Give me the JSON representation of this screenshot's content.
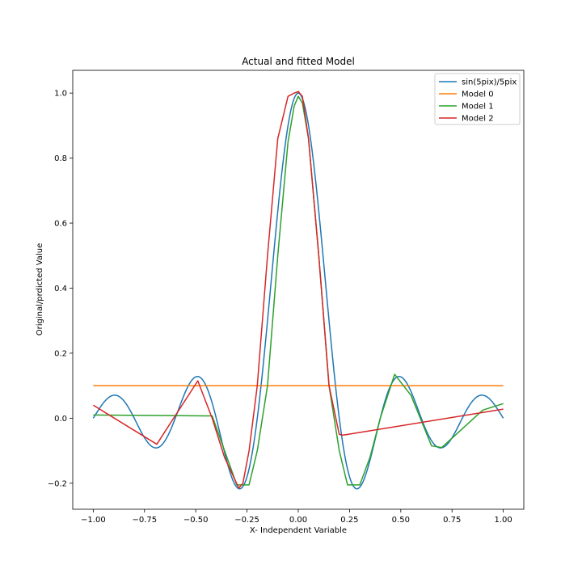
{
  "chart_data": {
    "type": "line",
    "title": "Actual and fitted Model",
    "xlabel": "X- Independent Variable",
    "ylabel": "Original/prdicted Value",
    "xlim": [
      -1.1,
      1.1
    ],
    "ylim": [
      -0.28,
      1.07
    ],
    "xticks": [
      -1.0,
      -0.75,
      -0.5,
      -0.25,
      0.0,
      0.25,
      0.5,
      0.75,
      1.0
    ],
    "xtick_labels": [
      "−1.00",
      "−0.75",
      "−0.50",
      "−0.25",
      "0.00",
      "0.25",
      "0.50",
      "0.75",
      "1.00"
    ],
    "yticks": [
      -0.2,
      0.0,
      0.2,
      0.4,
      0.6,
      0.8,
      1.0
    ],
    "ytick_labels": [
      "−0.2",
      "0.0",
      "0.2",
      "0.4",
      "0.6",
      "0.8",
      "1.0"
    ],
    "grid": false,
    "legend_position": "top-right",
    "series": [
      {
        "name": "sin(5pix)/5pix",
        "color": "#1f77b4",
        "function": "sinc5"
      },
      {
        "name": "Model 0",
        "color": "#ff7f0e",
        "x": [
          -1.0,
          1.0
        ],
        "y": [
          0.1,
          0.1
        ]
      },
      {
        "name": "Model 1",
        "color": "#2ca02c",
        "x": [
          -1.0,
          -0.42,
          -0.3,
          -0.27,
          -0.24,
          -0.2,
          -0.15,
          -0.1,
          -0.05,
          -0.02,
          0.0,
          0.02,
          0.05,
          0.1,
          0.15,
          0.2,
          0.24,
          0.27,
          0.3,
          0.35,
          0.4,
          0.47,
          0.55,
          0.65,
          0.7,
          0.9,
          1.0
        ],
        "y": [
          0.01,
          0.007,
          -0.205,
          -0.205,
          -0.205,
          -0.1,
          0.1,
          0.5,
          0.85,
          0.96,
          0.99,
          0.97,
          0.86,
          0.5,
          0.1,
          -0.1,
          -0.205,
          -0.205,
          -0.205,
          -0.12,
          0.0,
          0.135,
          0.07,
          -0.085,
          -0.09,
          0.025,
          0.045
        ]
      },
      {
        "name": "Model 2",
        "color": "#d62728",
        "x": [
          -1.0,
          -0.69,
          -0.49,
          -0.42,
          -0.36,
          -0.29,
          -0.27,
          -0.24,
          -0.2,
          -0.15,
          -0.1,
          -0.05,
          -0.02,
          0.0,
          0.02,
          0.05,
          0.1,
          0.15,
          0.2,
          0.22,
          1.0
        ],
        "y": [
          0.04,
          -0.08,
          0.115,
          0.0,
          -0.12,
          -0.215,
          -0.2,
          -0.1,
          0.1,
          0.5,
          0.86,
          0.99,
          1.0,
          1.005,
          0.99,
          0.86,
          0.5,
          0.1,
          -0.05,
          -0.052,
          0.028
        ]
      }
    ]
  }
}
